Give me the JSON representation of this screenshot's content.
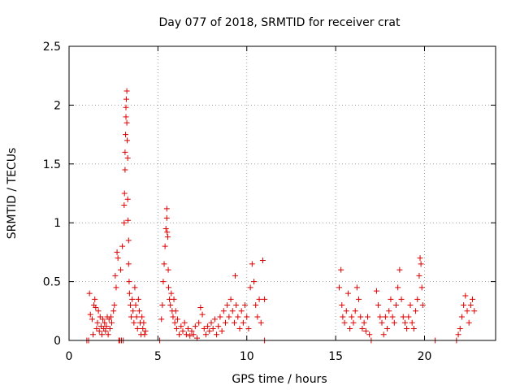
{
  "chart_data": {
    "type": "scatter",
    "title": "Day 077 of 2018, SRMTID for receiver crat",
    "xlabel": "GPS time / hours",
    "ylabel": "SRMTID / TECUs",
    "xlim": [
      0,
      24
    ],
    "ylim": [
      0,
      2.5
    ],
    "xticks": [
      0,
      5,
      10,
      15,
      20
    ],
    "xtick_labels": [
      "0",
      "5",
      "10",
      "15",
      "20"
    ],
    "yticks": [
      0,
      0.5,
      1,
      1.5,
      2,
      2.5
    ],
    "ytick_labels": [
      "0",
      "0.5",
      "1",
      "1.5",
      "2",
      "2.5"
    ],
    "grid": true,
    "marker": "plus",
    "color": "#dd0000",
    "series": [
      {
        "name": "SRMTID",
        "points": [
          [
            1.0,
            0
          ],
          [
            1.1,
            0
          ],
          [
            1.15,
            0.4
          ],
          [
            1.2,
            0.22
          ],
          [
            1.3,
            0.18
          ],
          [
            1.35,
            0.05
          ],
          [
            1.4,
            0.3
          ],
          [
            1.45,
            0.35
          ],
          [
            1.5,
            0.28
          ],
          [
            1.55,
            0.1
          ],
          [
            1.6,
            0.15
          ],
          [
            1.65,
            0.25
          ],
          [
            1.7,
            0.08
          ],
          [
            1.75,
            0.2
          ],
          [
            1.8,
            0.12
          ],
          [
            1.85,
            0.05
          ],
          [
            1.9,
            0.18
          ],
          [
            1.95,
            0.1
          ],
          [
            2.0,
            0.15
          ],
          [
            2.05,
            0.08
          ],
          [
            2.1,
            0.12
          ],
          [
            2.15,
            0.2
          ],
          [
            2.2,
            0.05
          ],
          [
            2.25,
            0.18
          ],
          [
            2.3,
            0.1
          ],
          [
            2.35,
            0.2
          ],
          [
            2.4,
            0.15
          ],
          [
            2.5,
            0.25
          ],
          [
            2.55,
            0.3
          ],
          [
            2.6,
            0.55
          ],
          [
            2.65,
            0.45
          ],
          [
            2.7,
            0.75
          ],
          [
            2.75,
            0.7
          ],
          [
            2.8,
            0
          ],
          [
            2.85,
            0
          ],
          [
            2.9,
            0.6
          ],
          [
            2.95,
            0
          ],
          [
            3.0,
            0.8
          ],
          [
            3.05,
            0
          ],
          [
            3.1,
            1.0
          ],
          [
            3.1,
            1.15
          ],
          [
            3.12,
            1.25
          ],
          [
            3.15,
            1.45
          ],
          [
            3.15,
            1.6
          ],
          [
            3.18,
            1.75
          ],
          [
            3.2,
            1.9
          ],
          [
            3.2,
            1.98
          ],
          [
            3.22,
            2.05
          ],
          [
            3.25,
            2.12
          ],
          [
            3.25,
            1.85
          ],
          [
            3.27,
            1.7
          ],
          [
            3.3,
            1.55
          ],
          [
            3.3,
            1.2
          ],
          [
            3.32,
            1.02
          ],
          [
            3.35,
            0.85
          ],
          [
            3.35,
            0.65
          ],
          [
            3.38,
            0.5
          ],
          [
            3.4,
            0.4
          ],
          [
            3.45,
            0.3
          ],
          [
            3.5,
            0.2
          ],
          [
            3.55,
            0.35
          ],
          [
            3.6,
            0.25
          ],
          [
            3.65,
            0.15
          ],
          [
            3.7,
            0.45
          ],
          [
            3.75,
            0.3
          ],
          [
            3.8,
            0.2
          ],
          [
            3.85,
            0.1
          ],
          [
            3.9,
            0.35
          ],
          [
            3.95,
            0.25
          ],
          [
            4.0,
            0.15
          ],
          [
            4.05,
            0.05
          ],
          [
            4.1,
            0.2
          ],
          [
            4.15,
            0.1
          ],
          [
            4.2,
            0.15
          ],
          [
            4.25,
            0.05
          ],
          [
            4.3,
            0.08
          ],
          [
            5.1,
            0
          ],
          [
            5.2,
            0.18
          ],
          [
            5.25,
            0.3
          ],
          [
            5.3,
            0.5
          ],
          [
            5.35,
            0.65
          ],
          [
            5.4,
            0.8
          ],
          [
            5.45,
            0.95
          ],
          [
            5.5,
            1.12
          ],
          [
            5.5,
            1.04
          ],
          [
            5.52,
            0.92
          ],
          [
            5.55,
            0.88
          ],
          [
            5.58,
            0.6
          ],
          [
            5.6,
            0.45
          ],
          [
            5.65,
            0.35
          ],
          [
            5.7,
            0.3
          ],
          [
            5.75,
            0.4
          ],
          [
            5.8,
            0.25
          ],
          [
            5.85,
            0.2
          ],
          [
            5.9,
            0.35
          ],
          [
            5.95,
            0.15
          ],
          [
            6.0,
            0.25
          ],
          [
            6.05,
            0.1
          ],
          [
            6.1,
            0.18
          ],
          [
            6.2,
            0.05
          ],
          [
            6.3,
            0.12
          ],
          [
            6.4,
            0.08
          ],
          [
            6.5,
            0.15
          ],
          [
            6.6,
            0.05
          ],
          [
            6.7,
            0.1
          ],
          [
            6.8,
            0.04
          ],
          [
            6.9,
            0.08
          ],
          [
            7.0,
            0.05
          ],
          [
            7.1,
            0.12
          ],
          [
            7.2,
            0.02
          ],
          [
            7.3,
            0.15
          ],
          [
            7.4,
            0.28
          ],
          [
            7.5,
            0.22
          ],
          [
            7.6,
            0.1
          ],
          [
            7.7,
            0.05
          ],
          [
            7.8,
            0.12
          ],
          [
            7.9,
            0.08
          ],
          [
            8.0,
            0.15
          ],
          [
            8.1,
            0.1
          ],
          [
            8.2,
            0.18
          ],
          [
            8.3,
            0.05
          ],
          [
            8.4,
            0.12
          ],
          [
            8.5,
            0.2
          ],
          [
            8.6,
            0.08
          ],
          [
            8.7,
            0.25
          ],
          [
            8.8,
            0.15
          ],
          [
            8.9,
            0.3
          ],
          [
            9.0,
            0.2
          ],
          [
            9.1,
            0.35
          ],
          [
            9.2,
            0.25
          ],
          [
            9.3,
            0.15
          ],
          [
            9.35,
            0.55
          ],
          [
            9.4,
            0.3
          ],
          [
            9.5,
            0.2
          ],
          [
            9.6,
            0.1
          ],
          [
            9.7,
            0.25
          ],
          [
            9.8,
            0.15
          ],
          [
            9.9,
            0.3
          ],
          [
            10.0,
            0.2
          ],
          [
            10.1,
            0.1
          ],
          [
            10.2,
            0.45
          ],
          [
            10.3,
            0.65
          ],
          [
            10.4,
            0.5
          ],
          [
            10.5,
            0.3
          ],
          [
            10.6,
            0.2
          ],
          [
            10.7,
            0.35
          ],
          [
            10.8,
            0.15
          ],
          [
            10.9,
            0.68
          ],
          [
            11.0,
            0.35
          ],
          [
            11.0,
            0
          ],
          [
            15.2,
            0.45
          ],
          [
            15.3,
            0.6
          ],
          [
            15.35,
            0.3
          ],
          [
            15.4,
            0.2
          ],
          [
            15.5,
            0.15
          ],
          [
            15.6,
            0.25
          ],
          [
            15.7,
            0.4
          ],
          [
            15.8,
            0.1
          ],
          [
            15.9,
            0.2
          ],
          [
            16.0,
            0.15
          ],
          [
            16.1,
            0.25
          ],
          [
            16.2,
            0.45
          ],
          [
            16.3,
            0.35
          ],
          [
            16.4,
            0.2
          ],
          [
            16.5,
            0.1
          ],
          [
            16.6,
            0.15
          ],
          [
            16.7,
            0.08
          ],
          [
            16.8,
            0.2
          ],
          [
            16.9,
            0.05
          ],
          [
            17.0,
            0
          ],
          [
            17.3,
            0.42
          ],
          [
            17.4,
            0.3
          ],
          [
            17.5,
            0.2
          ],
          [
            17.6,
            0.15
          ],
          [
            17.7,
            0.05
          ],
          [
            17.8,
            0.2
          ],
          [
            17.9,
            0.1
          ],
          [
            18.0,
            0.25
          ],
          [
            18.1,
            0.35
          ],
          [
            18.2,
            0.2
          ],
          [
            18.3,
            0.15
          ],
          [
            18.4,
            0.3
          ],
          [
            18.5,
            0.45
          ],
          [
            18.6,
            0.6
          ],
          [
            18.7,
            0.35
          ],
          [
            18.8,
            0.2
          ],
          [
            18.9,
            0.15
          ],
          [
            19.0,
            0.1
          ],
          [
            19.1,
            0.2
          ],
          [
            19.2,
            0.3
          ],
          [
            19.3,
            0.15
          ],
          [
            19.4,
            0.1
          ],
          [
            19.5,
            0.25
          ],
          [
            19.6,
            0.35
          ],
          [
            19.7,
            0.55
          ],
          [
            19.75,
            0.7
          ],
          [
            19.8,
            0.65
          ],
          [
            19.85,
            0.45
          ],
          [
            19.9,
            0.3
          ],
          [
            20.6,
            0
          ],
          [
            21.8,
            0
          ],
          [
            21.9,
            0.05
          ],
          [
            22.0,
            0.1
          ],
          [
            22.1,
            0.2
          ],
          [
            22.2,
            0.3
          ],
          [
            22.3,
            0.38
          ],
          [
            22.4,
            0.25
          ],
          [
            22.5,
            0.15
          ],
          [
            22.6,
            0.3
          ],
          [
            22.7,
            0.35
          ],
          [
            22.8,
            0.25
          ]
        ]
      }
    ]
  }
}
